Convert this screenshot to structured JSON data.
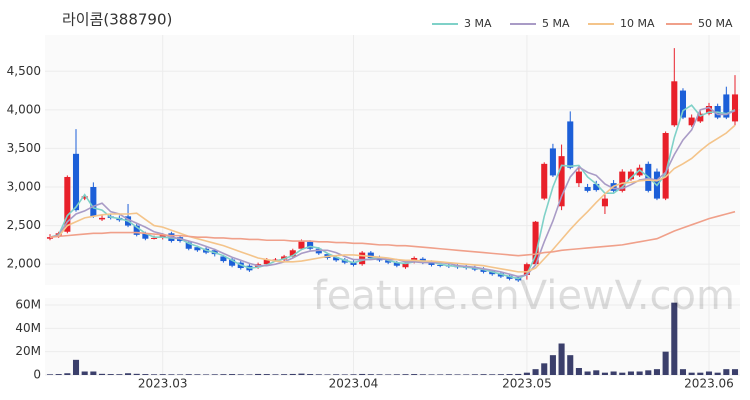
{
  "chart_data": [
    {
      "type": "candlestick",
      "title": "라이콤(388790)",
      "watermark": "feature.enViewV.com",
      "categories": [
        null,
        null,
        null,
        null,
        null,
        null,
        null,
        null,
        null,
        null,
        null,
        null,
        null,
        "2023.03",
        null,
        null,
        null,
        null,
        null,
        null,
        null,
        null,
        null,
        null,
        null,
        null,
        null,
        null,
        null,
        null,
        null,
        null,
        null,
        null,
        null,
        "2023.04",
        null,
        null,
        null,
        null,
        null,
        null,
        null,
        null,
        null,
        null,
        null,
        null,
        null,
        null,
        null,
        null,
        null,
        null,
        null,
        "2023.05",
        null,
        null,
        null,
        null,
        null,
        null,
        null,
        null,
        null,
        null,
        null,
        null,
        null,
        null,
        null,
        null,
        null,
        null,
        null,
        null,
        "2023.06",
        null,
        null,
        null
      ],
      "open": [
        2330,
        2360,
        2420,
        3430,
        2850,
        3000,
        2580,
        2620,
        2600,
        2620,
        2500,
        2400,
        2330,
        2340,
        2400,
        2350,
        2280,
        2220,
        2200,
        2180,
        2100,
        2060,
        2020,
        1980,
        1960,
        2000,
        2050,
        2060,
        2100,
        2200,
        2290,
        2200,
        2130,
        2090,
        2060,
        2030,
        2000,
        2150,
        2090,
        2050,
        2020,
        1960,
        2030,
        2070,
        2030,
        1990,
        1990,
        1980,
        1970,
        1960,
        1940,
        1910,
        1880,
        1850,
        1830,
        1860,
        2000,
        2850,
        3500,
        2750,
        3850,
        3050,
        3000,
        3040,
        2750,
        3050,
        2950,
        3100,
        3150,
        3300,
        3200,
        2850,
        3800,
        4250,
        3800,
        3850,
        3950,
        4050,
        4200,
        3850
      ],
      "high": [
        2390,
        2420,
        3150,
        3750,
        2900,
        3060,
        2630,
        2650,
        2630,
        2780,
        2530,
        2420,
        2370,
        2400,
        2420,
        2370,
        2300,
        2240,
        2220,
        2200,
        2120,
        2080,
        2040,
        2000,
        2020,
        2080,
        2080,
        2120,
        2200,
        2320,
        2310,
        2220,
        2150,
        2110,
        2080,
        2050,
        2170,
        2170,
        2110,
        2070,
        2040,
        2040,
        2100,
        2090,
        2050,
        2010,
        2010,
        2000,
        1990,
        1980,
        1960,
        1930,
        1900,
        1870,
        1850,
        2020,
        2560,
        3320,
        3560,
        3550,
        3980,
        3260,
        3040,
        3080,
        2900,
        3090,
        3230,
        3230,
        3290,
        3330,
        3240,
        3720,
        4800,
        4280,
        3940,
        3990,
        4090,
        4080,
        4300,
        4450
      ],
      "low": [
        2310,
        2340,
        2400,
        2680,
        2830,
        2600,
        2560,
        2580,
        2550,
        2480,
        2360,
        2310,
        2320,
        2320,
        2280,
        2280,
        2180,
        2160,
        2130,
        2100,
        2020,
        1960,
        1930,
        1900,
        1940,
        1990,
        2040,
        2040,
        2080,
        2180,
        2180,
        2120,
        2060,
        2030,
        2000,
        1970,
        1980,
        2060,
        2030,
        2000,
        1960,
        1940,
        2010,
        2000,
        1970,
        1960,
        1950,
        1940,
        1930,
        1910,
        1880,
        1850,
        1820,
        1790,
        1770,
        1800,
        1980,
        2830,
        3130,
        2700,
        3230,
        3000,
        2930,
        2940,
        2650,
        2930,
        2930,
        3080,
        3130,
        2930,
        2830,
        2830,
        3780,
        3880,
        3780,
        3830,
        3930,
        3880,
        3880,
        3800
      ],
      "close": [
        2350,
        2400,
        3130,
        2700,
        2880,
        2620,
        2600,
        2600,
        2570,
        2500,
        2380,
        2330,
        2340,
        2380,
        2300,
        2300,
        2200,
        2180,
        2150,
        2130,
        2040,
        1980,
        1950,
        1920,
        2000,
        2060,
        2060,
        2100,
        2180,
        2300,
        2200,
        2140,
        2080,
        2050,
        2020,
        1990,
        2150,
        2080,
        2050,
        2020,
        1980,
        2020,
        2080,
        2020,
        1990,
        1980,
        1970,
        1960,
        1950,
        1930,
        1900,
        1870,
        1840,
        1810,
        1790,
        2000,
        2550,
        3300,
        3150,
        3400,
        3250,
        3200,
        2950,
        2960,
        2850,
        2950,
        3200,
        3200,
        3250,
        2950,
        2850,
        3700,
        4370,
        3900,
        3900,
        3950,
        4050,
        3900,
        3900,
        4200
      ],
      "up_color": "#e8202a",
      "down_color": "#1c5fd8",
      "ylim": [
        1730,
        4970
      ],
      "yticks": [
        {
          "value": 2000,
          "label": "2,000"
        },
        {
          "value": 2500,
          "label": "2,500"
        },
        {
          "value": 3000,
          "label": "3,000"
        },
        {
          "value": 3500,
          "label": "3,500"
        },
        {
          "value": 4000,
          "label": "4,000"
        },
        {
          "value": 4500,
          "label": "4,500"
        }
      ],
      "grid": true,
      "series": [
        {
          "name": "3 MA",
          "color": "#7fd1c8",
          "values": [
            2350,
            2380,
            2630,
            2740,
            2900,
            2730,
            2700,
            2610,
            2590,
            2560,
            2480,
            2400,
            2350,
            2350,
            2340,
            2330,
            2270,
            2230,
            2180,
            2150,
            2110,
            2050,
            1990,
            1950,
            1960,
            1990,
            2040,
            2070,
            2110,
            2190,
            2230,
            2210,
            2140,
            2090,
            2050,
            2020,
            2050,
            2070,
            2090,
            2050,
            2020,
            2010,
            2030,
            2040,
            2030,
            2000,
            1980,
            1970,
            1960,
            1950,
            1930,
            1900,
            1870,
            1840,
            1810,
            1870,
            2110,
            2620,
            3000,
            3280,
            3270,
            3280,
            3130,
            3040,
            2920,
            2920,
            3000,
            3120,
            3220,
            3130,
            3020,
            3170,
            3640,
            3990,
            4060,
            3920,
            3970,
            3970,
            3950,
            4000
          ]
        },
        {
          "name": "5 MA",
          "color": "#a99bc6",
          "values": [
            2350,
            2370,
            2550,
            2650,
            2690,
            2750,
            2790,
            2680,
            2650,
            2580,
            2530,
            2480,
            2420,
            2390,
            2350,
            2330,
            2300,
            2270,
            2230,
            2190,
            2140,
            2090,
            2050,
            2010,
            1980,
            1980,
            2000,
            2030,
            2080,
            2140,
            2170,
            2180,
            2180,
            2150,
            2100,
            2060,
            2060,
            2060,
            2070,
            2060,
            2060,
            2030,
            2030,
            2020,
            2020,
            2020,
            2010,
            1980,
            1970,
            1960,
            1940,
            1920,
            1900,
            1870,
            1840,
            1860,
            1990,
            2290,
            2560,
            2880,
            3130,
            3260,
            3190,
            3150,
            3040,
            2980,
            2980,
            3030,
            3090,
            3110,
            3090,
            3190,
            3420,
            3610,
            3740,
            4000,
            4030,
            3940,
            3940,
            3990
          ]
        },
        {
          "name": "10 MA",
          "color": "#f4c48a",
          "values": [
            2350,
            2360,
            2500,
            2550,
            2600,
            2620,
            2640,
            2650,
            2650,
            2650,
            2660,
            2580,
            2500,
            2480,
            2440,
            2400,
            2360,
            2330,
            2300,
            2270,
            2240,
            2200,
            2160,
            2120,
            2080,
            2060,
            2040,
            2030,
            2030,
            2040,
            2060,
            2080,
            2100,
            2110,
            2120,
            2120,
            2110,
            2100,
            2090,
            2080,
            2060,
            2050,
            2050,
            2040,
            2040,
            2030,
            2020,
            2010,
            2000,
            1990,
            1980,
            1960,
            1940,
            1920,
            1900,
            1900,
            1950,
            2070,
            2190,
            2320,
            2450,
            2570,
            2680,
            2800,
            2910,
            3010,
            3050,
            3060,
            3080,
            3090,
            3080,
            3130,
            3240,
            3300,
            3370,
            3470,
            3560,
            3630,
            3700,
            3800
          ]
        },
        {
          "name": "50 MA",
          "color": "#f0a08a",
          "values": [
            2350,
            2360,
            2370,
            2380,
            2390,
            2400,
            2400,
            2410,
            2410,
            2410,
            2410,
            2400,
            2390,
            2380,
            2370,
            2370,
            2360,
            2350,
            2350,
            2340,
            2340,
            2330,
            2330,
            2320,
            2320,
            2310,
            2310,
            2310,
            2300,
            2300,
            2300,
            2290,
            2290,
            2280,
            2280,
            2270,
            2270,
            2260,
            2250,
            2250,
            2240,
            2240,
            2230,
            2220,
            2210,
            2200,
            2190,
            2180,
            2170,
            2160,
            2150,
            2140,
            2130,
            2120,
            2110,
            2120,
            2130,
            2150,
            2160,
            2180,
            2190,
            2200,
            2210,
            2220,
            2230,
            2240,
            2250,
            2270,
            2290,
            2310,
            2330,
            2380,
            2430,
            2470,
            2510,
            2550,
            2590,
            2620,
            2650,
            2680
          ]
        }
      ]
    },
    {
      "type": "bar",
      "color": "#3b3f6b",
      "values": [
        600000,
        800000,
        1500000,
        13000000,
        3000000,
        3000000,
        1000000,
        800000,
        700000,
        1500000,
        1000000,
        800000,
        600000,
        700000,
        600000,
        500000,
        700000,
        600000,
        500000,
        600000,
        700000,
        800000,
        600000,
        500000,
        900000,
        800000,
        600000,
        700000,
        900000,
        1200000,
        800000,
        600000,
        500000,
        600000,
        500000,
        600000,
        900000,
        700000,
        600000,
        500000,
        600000,
        700000,
        800000,
        600000,
        500000,
        500000,
        600000,
        500000,
        500000,
        600000,
        700000,
        600000,
        700000,
        800000,
        900000,
        2000000,
        5000000,
        10000000,
        17000000,
        27000000,
        17000000,
        6000000,
        3000000,
        4000000,
        2000000,
        3000000,
        2000000,
        3000000,
        3000000,
        4000000,
        5000000,
        20000000,
        62000000,
        5000000,
        2000000,
        2000000,
        3000000,
        2000000,
        5000000,
        5000000
      ],
      "ylim": [
        0,
        66000000
      ],
      "yticks": [
        0,
        {
          "value": 20000000,
          "label": "20M"
        },
        {
          "value": 40000000,
          "label": "40M"
        },
        {
          "value": 60000000,
          "label": "60M"
        }
      ],
      "grid": true
    }
  ]
}
